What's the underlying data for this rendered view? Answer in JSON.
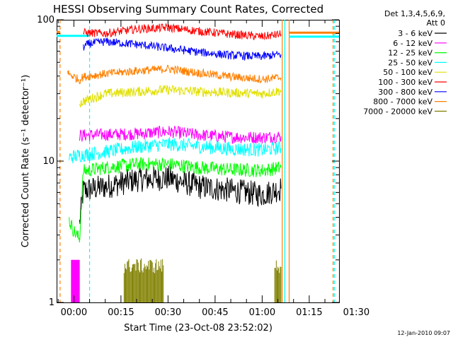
{
  "chart_data": {
    "type": "line",
    "title": "HESSI Observing Summary Count Rates, Corrected",
    "xlabel": "Start Time (23-Oct-08 23:52:02)",
    "ylabel": "Corrected Count Rate (s⁻¹ detector⁻¹)",
    "yscale": "log",
    "ylim": [
      1,
      100
    ],
    "xlim_minutes": [
      -5.5,
      84.5
    ],
    "x_tick_minutes": [
      0,
      15,
      30,
      45,
      60,
      75,
      90
    ],
    "x_tick_labels": [
      "00:00",
      "00:15",
      "00:30",
      "00:45",
      "01:00",
      "01:15",
      "01:30"
    ],
    "y_tick_values": [
      1,
      10,
      100
    ],
    "y_tick_labels": [
      "1",
      "10",
      "100"
    ],
    "legend_header": [
      "Det 1,3,4,5,6,9,",
      "Att 0"
    ],
    "legend_position": "outside-right",
    "timestamp": "12-Jan-2010 09:07",
    "series": [
      {
        "name": "3 - 6 keV",
        "color": "#000000",
        "x": [
          1.8,
          3,
          10,
          20,
          30,
          40,
          50,
          60,
          66
        ],
        "y": [
          3.6,
          6.2,
          6.6,
          7.4,
          7.6,
          6.6,
          6.2,
          5.8,
          6.4
        ]
      },
      {
        "name": "6 - 12 keV",
        "color": "#ff00ff",
        "x": [
          1.8,
          10,
          20,
          30,
          40,
          50,
          60,
          66
        ],
        "y": [
          15.2,
          15.4,
          15.6,
          16.2,
          15.3,
          14.8,
          14.7,
          15.0
        ]
      },
      {
        "name": "12 - 25 keV",
        "color": "#00ff00",
        "x": [
          -1.5,
          0,
          1.8,
          3,
          10,
          20,
          30,
          40,
          50,
          60,
          66
        ],
        "y": [
          3.8,
          3.2,
          2.8,
          8.5,
          9.0,
          9.5,
          9.5,
          9.0,
          8.7,
          8.6,
          9.0
        ]
      },
      {
        "name": "25 - 50 keV",
        "color": "#00ffff",
        "x": [
          -1.5,
          1.8,
          10,
          20,
          30,
          40,
          50,
          60,
          66
        ],
        "y": [
          10.6,
          11.0,
          11.6,
          12.6,
          13.2,
          12.7,
          12.2,
          12.0,
          12.4
        ]
      },
      {
        "name": "50 - 100 keV",
        "color": "#e0e000",
        "x": [
          1.8,
          3,
          10,
          20,
          30,
          40,
          50,
          60,
          66
        ],
        "y": [
          25.5,
          26.5,
          30.0,
          31.0,
          32.0,
          31.0,
          30.5,
          30.0,
          31.5
        ]
      },
      {
        "name": "100 - 300 keV",
        "color": "#ff0000",
        "x": [
          3,
          10,
          20,
          30,
          40,
          50,
          60,
          66
        ],
        "y": [
          81.0,
          80.0,
          86.0,
          88.0,
          83.0,
          79.0,
          76.0,
          79.0
        ]
      },
      {
        "name": "300 - 800 keV",
        "color": "#0000ff",
        "x": [
          3,
          5,
          10,
          20,
          30,
          40,
          50,
          60,
          66
        ],
        "y": [
          64.0,
          68.0,
          70.0,
          67.0,
          63.0,
          59.0,
          56.0,
          55.0,
          57.0
        ]
      },
      {
        "name": "800 - 7000 keV",
        "color": "#ff8000",
        "x": [
          -2.0,
          1.8,
          3,
          10,
          20,
          30,
          40,
          50,
          60,
          66
        ],
        "y": [
          42.0,
          37.5,
          39.5,
          41.5,
          43.5,
          45.0,
          42.0,
          39.5,
          38.0,
          39.0
        ]
      },
      {
        "name": "7000 - 20000 keV",
        "color": "#808000",
        "x": [],
        "y": []
      }
    ]
  }
}
